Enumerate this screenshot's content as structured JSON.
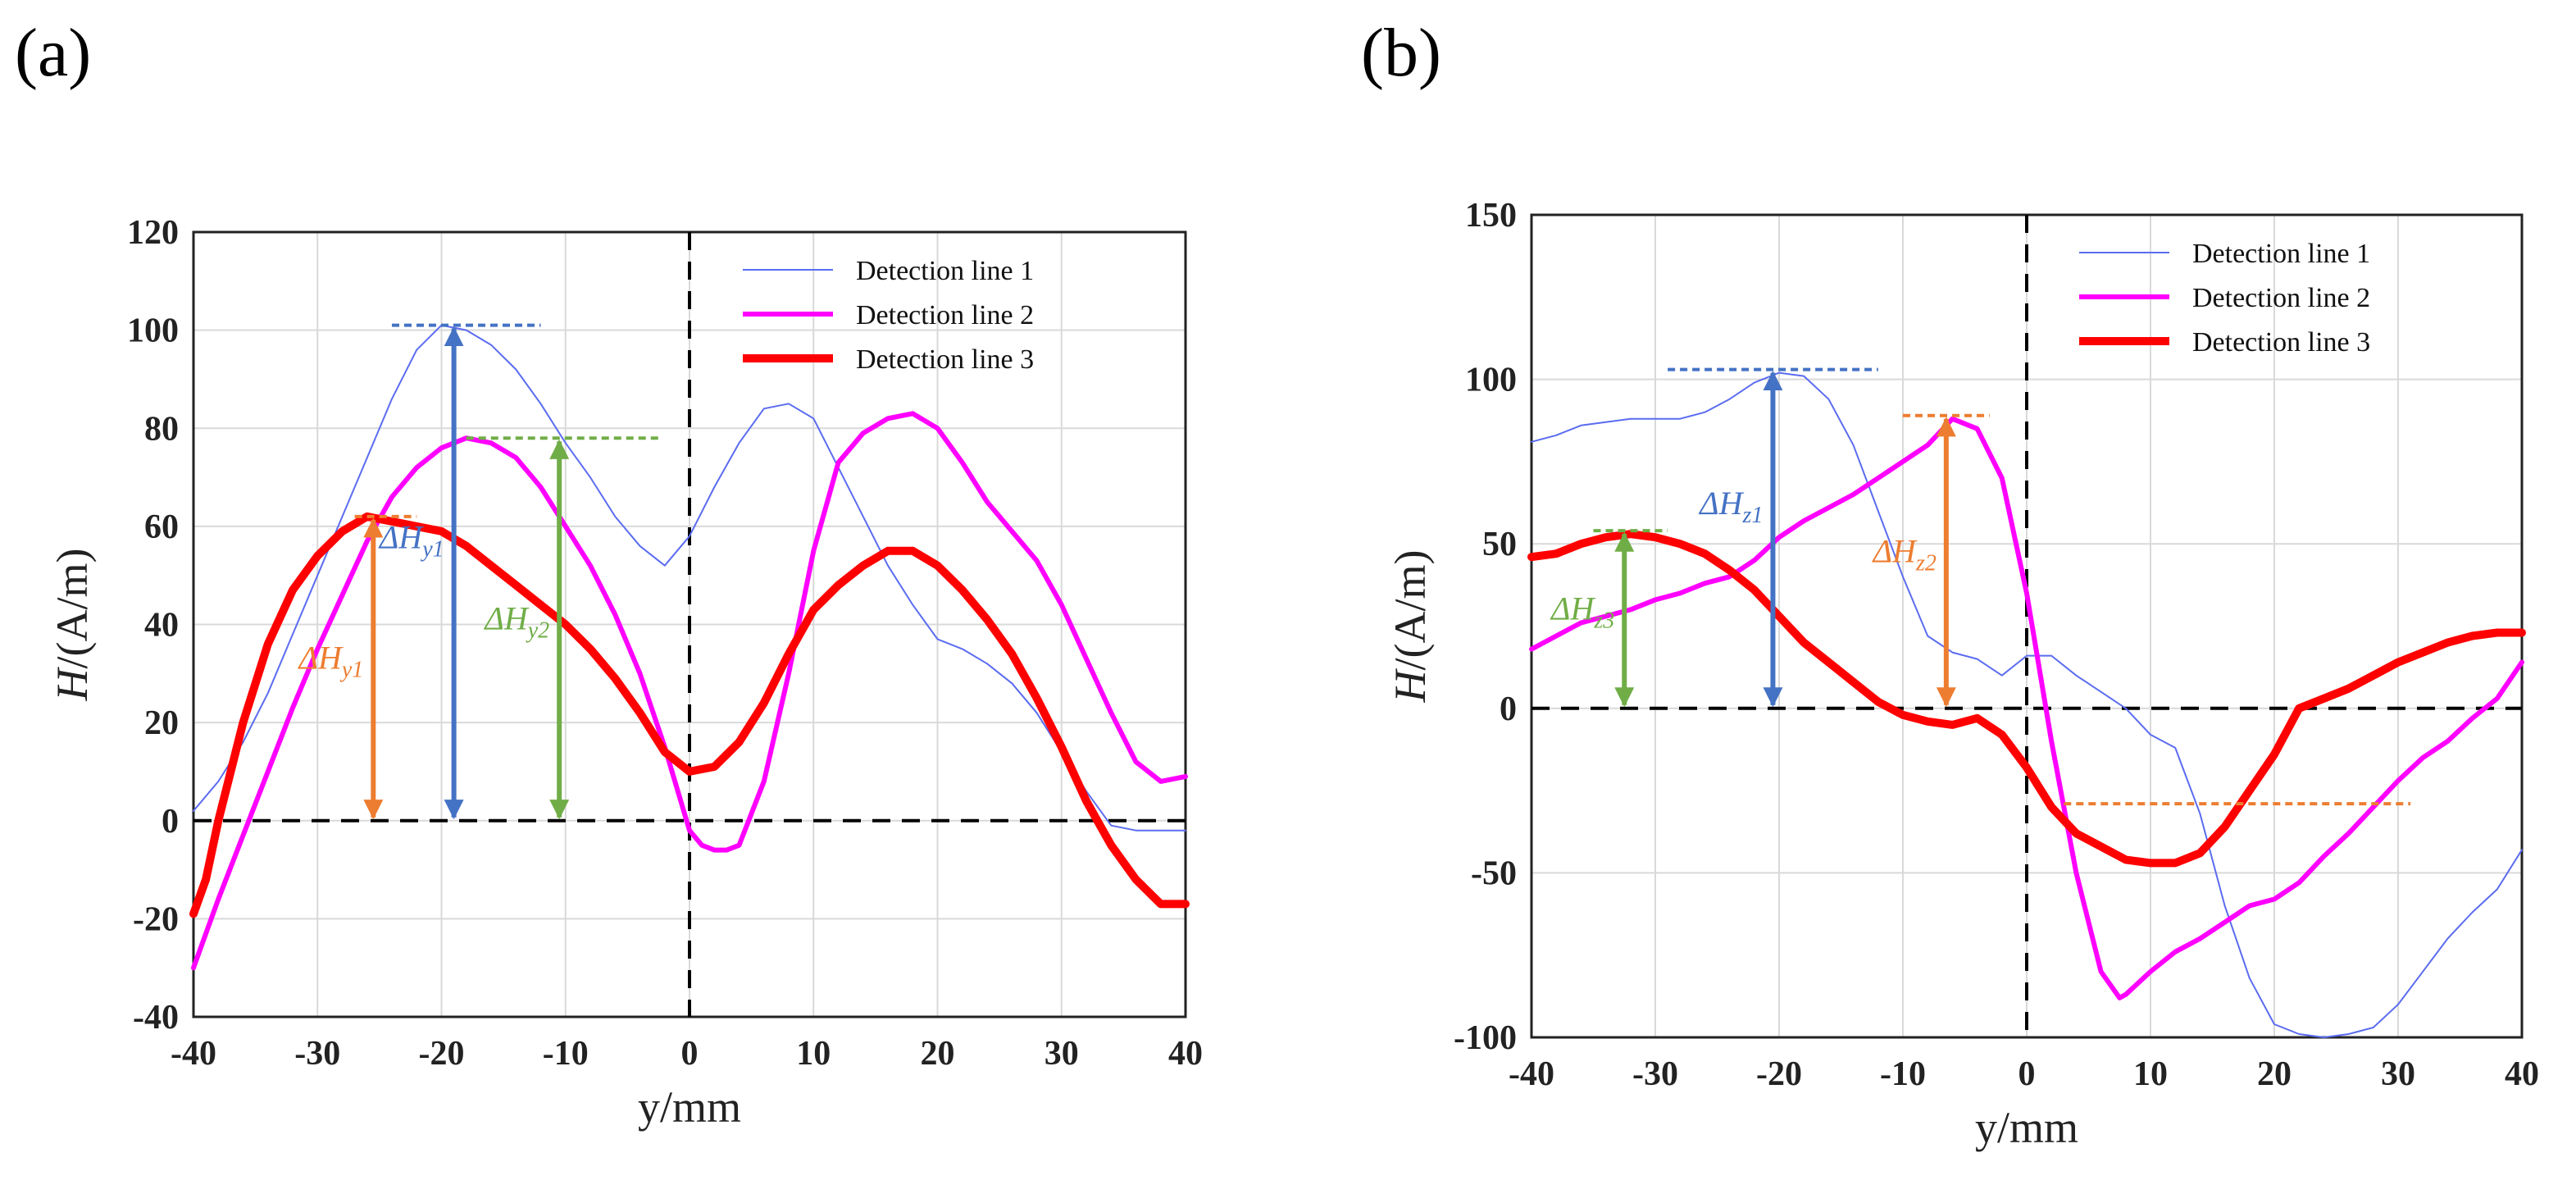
{
  "panels": [
    {
      "label": "(a)"
    },
    {
      "label": "(b)"
    }
  ],
  "colors": {
    "line1": "#5b6cf0",
    "line2": "#ff00ff",
    "line3": "#ff0000",
    "blue_arrow": "#4472c4",
    "orange_arrow": "#ed7d31",
    "green_arrow": "#70ad47",
    "axis": "#222222",
    "grid": "#d9d9d9"
  },
  "chart_data": [
    {
      "type": "line",
      "panel": "(a)",
      "xlabel": "y/mm",
      "ylabel_italic": "H",
      "ylabel_rest": "/(A/m)",
      "xlim": [
        -40,
        40
      ],
      "ylim": [
        -40,
        120
      ],
      "xticks": [
        -40,
        -30,
        -20,
        -10,
        0,
        10,
        20,
        30,
        40
      ],
      "yticks": [
        -40,
        -20,
        0,
        20,
        40,
        60,
        80,
        100,
        120
      ],
      "grid": true,
      "legend_position": "top-right",
      "series": [
        {
          "name": "Detection line 1",
          "width": "thin",
          "x": [
            -40,
            -38,
            -36,
            -34,
            -32,
            -30,
            -28,
            -26,
            -24,
            -22,
            -20,
            -18,
            -16,
            -14,
            -12,
            -10,
            -8,
            -6,
            -4,
            -2,
            0,
            2,
            4,
            6,
            8,
            10,
            12,
            14,
            16,
            18,
            20,
            22,
            24,
            26,
            28,
            30,
            32,
            34,
            36,
            38,
            40
          ],
          "y": [
            2,
            8,
            16,
            26,
            38,
            50,
            62,
            74,
            86,
            96,
            101,
            100,
            97,
            92,
            85,
            77,
            70,
            62,
            56,
            52,
            58,
            68,
            77,
            84,
            85,
            82,
            72,
            62,
            52,
            44,
            37,
            35,
            32,
            28,
            22,
            14,
            6,
            -1,
            -2,
            -2,
            -2
          ]
        },
        {
          "name": "Detection line 2",
          "width": "medium",
          "x": [
            -40,
            -38,
            -36,
            -34,
            -32,
            -30,
            -28,
            -26,
            -24,
            -22,
            -20,
            -18,
            -16,
            -14,
            -12,
            -10,
            -8,
            -6,
            -4,
            -2,
            0,
            1,
            2,
            3,
            4,
            6,
            8,
            10,
            12,
            14,
            16,
            18,
            20,
            22,
            24,
            26,
            28,
            30,
            32,
            34,
            36,
            38,
            40
          ],
          "y": [
            -30,
            -16,
            -3,
            10,
            23,
            35,
            46,
            57,
            66,
            72,
            76,
            78,
            77,
            74,
            68,
            60,
            52,
            42,
            30,
            15,
            -2,
            -5,
            -6,
            -6,
            -5,
            8,
            30,
            55,
            73,
            79,
            82,
            83,
            80,
            73,
            65,
            59,
            53,
            44,
            33,
            22,
            12,
            8,
            9
          ]
        },
        {
          "name": "Detection line 3",
          "width": "thick",
          "x": [
            -40,
            -39,
            -38,
            -36,
            -34,
            -32,
            -30,
            -28,
            -26,
            -24,
            -22,
            -20,
            -18,
            -16,
            -14,
            -12,
            -10,
            -8,
            -6,
            -4,
            -2,
            0,
            2,
            4,
            6,
            8,
            10,
            12,
            14,
            16,
            18,
            20,
            22,
            24,
            26,
            28,
            30,
            32,
            34,
            36,
            38,
            40
          ],
          "y": [
            -19,
            -12,
            0,
            20,
            36,
            47,
            54,
            59,
            62,
            61,
            60,
            59,
            56,
            52,
            48,
            44,
            40,
            35,
            29,
            22,
            14,
            10,
            11,
            16,
            24,
            34,
            43,
            48,
            52,
            55,
            55,
            52,
            47,
            41,
            34,
            25,
            15,
            4,
            -5,
            -12,
            -17,
            -17
          ]
        }
      ],
      "annotations": [
        {
          "name": "dHy1-orange",
          "color": "orange",
          "label_main": "ΔH",
          "label_sub": "y1",
          "x": -25.5,
          "y_from": 0,
          "y_to": 62,
          "dash_x_range": [
            -27,
            -22
          ]
        },
        {
          "name": "dHy1-blue",
          "color": "blue",
          "label_main": "ΔH",
          "label_sub": "y1",
          "x": -19,
          "y_from": 0,
          "y_to": 101,
          "dash_x_range": [
            -24,
            -12
          ]
        },
        {
          "name": "dHy2-green",
          "color": "green",
          "label_main": "ΔH",
          "label_sub": "y2",
          "x": -10.5,
          "y_from": 0,
          "y_to": 78,
          "dash_x_range": [
            -18,
            -2.5
          ]
        }
      ]
    },
    {
      "type": "line",
      "panel": "(b)",
      "xlabel": "y/mm",
      "ylabel_italic": "H",
      "ylabel_rest": "/(A/m)",
      "xlim": [
        -40,
        40
      ],
      "ylim": [
        -100,
        150
      ],
      "xticks": [
        -40,
        -30,
        -20,
        -10,
        0,
        10,
        20,
        30,
        40
      ],
      "yticks": [
        -100,
        -50,
        0,
        50,
        100,
        150
      ],
      "grid": true,
      "legend_position": "top-right",
      "series": [
        {
          "name": "Detection line 1",
          "width": "thin",
          "x": [
            -40,
            -38,
            -36,
            -34,
            -32,
            -30,
            -28,
            -26,
            -24,
            -22,
            -20,
            -18,
            -16,
            -14,
            -12,
            -10,
            -8,
            -6,
            -4,
            -2,
            0,
            2,
            4,
            6,
            8,
            10,
            12,
            14,
            16,
            18,
            20,
            22,
            24,
            26,
            28,
            30,
            32,
            34,
            36,
            38,
            40
          ],
          "y": [
            81,
            83,
            86,
            87,
            88,
            88,
            88,
            90,
            94,
            99,
            102,
            101,
            94,
            80,
            60,
            40,
            22,
            17,
            15,
            10,
            16,
            16,
            10,
            5,
            0,
            -8,
            -12,
            -32,
            -60,
            -82,
            -96,
            -99,
            -100,
            -99,
            -97,
            -90,
            -80,
            -70,
            -62,
            -55,
            -43
          ]
        },
        {
          "name": "Detection line 2",
          "width": "medium",
          "x": [
            -40,
            -38,
            -36,
            -34,
            -32,
            -30,
            -28,
            -26,
            -24,
            -22,
            -20,
            -18,
            -16,
            -14,
            -12,
            -10,
            -8,
            -6,
            -4,
            -2,
            0,
            2,
            4,
            6,
            7.5,
            8,
            10,
            12,
            14,
            16,
            18,
            20,
            22,
            24,
            26,
            28,
            30,
            32,
            34,
            36,
            38,
            40
          ],
          "y": [
            18,
            22,
            26,
            28,
            30,
            33,
            35,
            38,
            40,
            45,
            52,
            57,
            61,
            65,
            70,
            75,
            80,
            88,
            85,
            70,
            35,
            -10,
            -50,
            -80,
            -88,
            -87,
            -80,
            -74,
            -70,
            -65,
            -60,
            -58,
            -53,
            -45,
            -38,
            -30,
            -22,
            -15,
            -10,
            -3,
            3,
            14
          ]
        },
        {
          "name": "Detection line 3",
          "width": "thick",
          "x": [
            -40,
            -38,
            -36,
            -34,
            -32,
            -30,
            -28,
            -26,
            -24,
            -22,
            -20,
            -18,
            -16,
            -14,
            -12,
            -10,
            -8,
            -6,
            -4,
            -2,
            0,
            2,
            4,
            6,
            8,
            10,
            12,
            14,
            16,
            18,
            20,
            22,
            24,
            26,
            28,
            30,
            32,
            34,
            36,
            38,
            40
          ],
          "y": [
            46,
            47,
            50,
            52,
            53,
            52,
            50,
            47,
            42,
            36,
            28,
            20,
            14,
            8,
            2,
            -2,
            -4,
            -5,
            -3,
            -8,
            -18,
            -30,
            -38,
            -42,
            -46,
            -47,
            -47,
            -44,
            -36,
            -25,
            -14,
            0,
            3,
            6,
            10,
            14,
            17,
            20,
            22,
            23,
            23
          ]
        }
      ],
      "annotations": [
        {
          "name": "dHz3-green",
          "color": "green",
          "label_main": "ΔH",
          "label_sub": "z3",
          "x": -32.5,
          "y_from": 0,
          "y_to": 54,
          "dash_x_range": [
            -35,
            -29
          ]
        },
        {
          "name": "dHz1-blue",
          "color": "blue",
          "label_main": "ΔH",
          "label_sub": "z1",
          "x": -20.5,
          "y_from": 0,
          "y_to": 103,
          "dash_x_range": [
            -29,
            -12
          ]
        },
        {
          "name": "dHz2-orange",
          "color": "orange",
          "label_main": "ΔH",
          "label_sub": "z2",
          "x": -6.5,
          "y_from": 0,
          "y_to": 89,
          "dash_x_range": [
            -10,
            -3
          ]
        },
        {
          "name": "min-orange-dash",
          "color": "orange",
          "dash_only": true,
          "y_level": -29,
          "dash_x_range": [
            3,
            31
          ]
        }
      ]
    }
  ]
}
